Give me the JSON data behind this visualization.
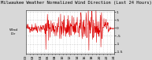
{
  "title": "Milwaukee Weather Normalized Wind Direction (Last 24 Hours)",
  "left_label": "Wind\nDir",
  "line_color": "#dd0000",
  "background_color": "#d8d8d8",
  "plot_bg_color": "#ffffff",
  "grid_color": "#999999",
  "title_fontsize": 4.0,
  "tick_fontsize": 3.2,
  "label_fontsize": 3.2,
  "ylim": [
    -1.6,
    1.1
  ],
  "yticks": [
    1.0,
    0.5,
    0.0,
    -0.5,
    -1.0,
    -1.5
  ],
  "ytick_labels": [
    "1",
    ".5",
    "0",
    "-.5",
    "-1",
    "-1.5"
  ],
  "num_points": 288,
  "seed": 42
}
